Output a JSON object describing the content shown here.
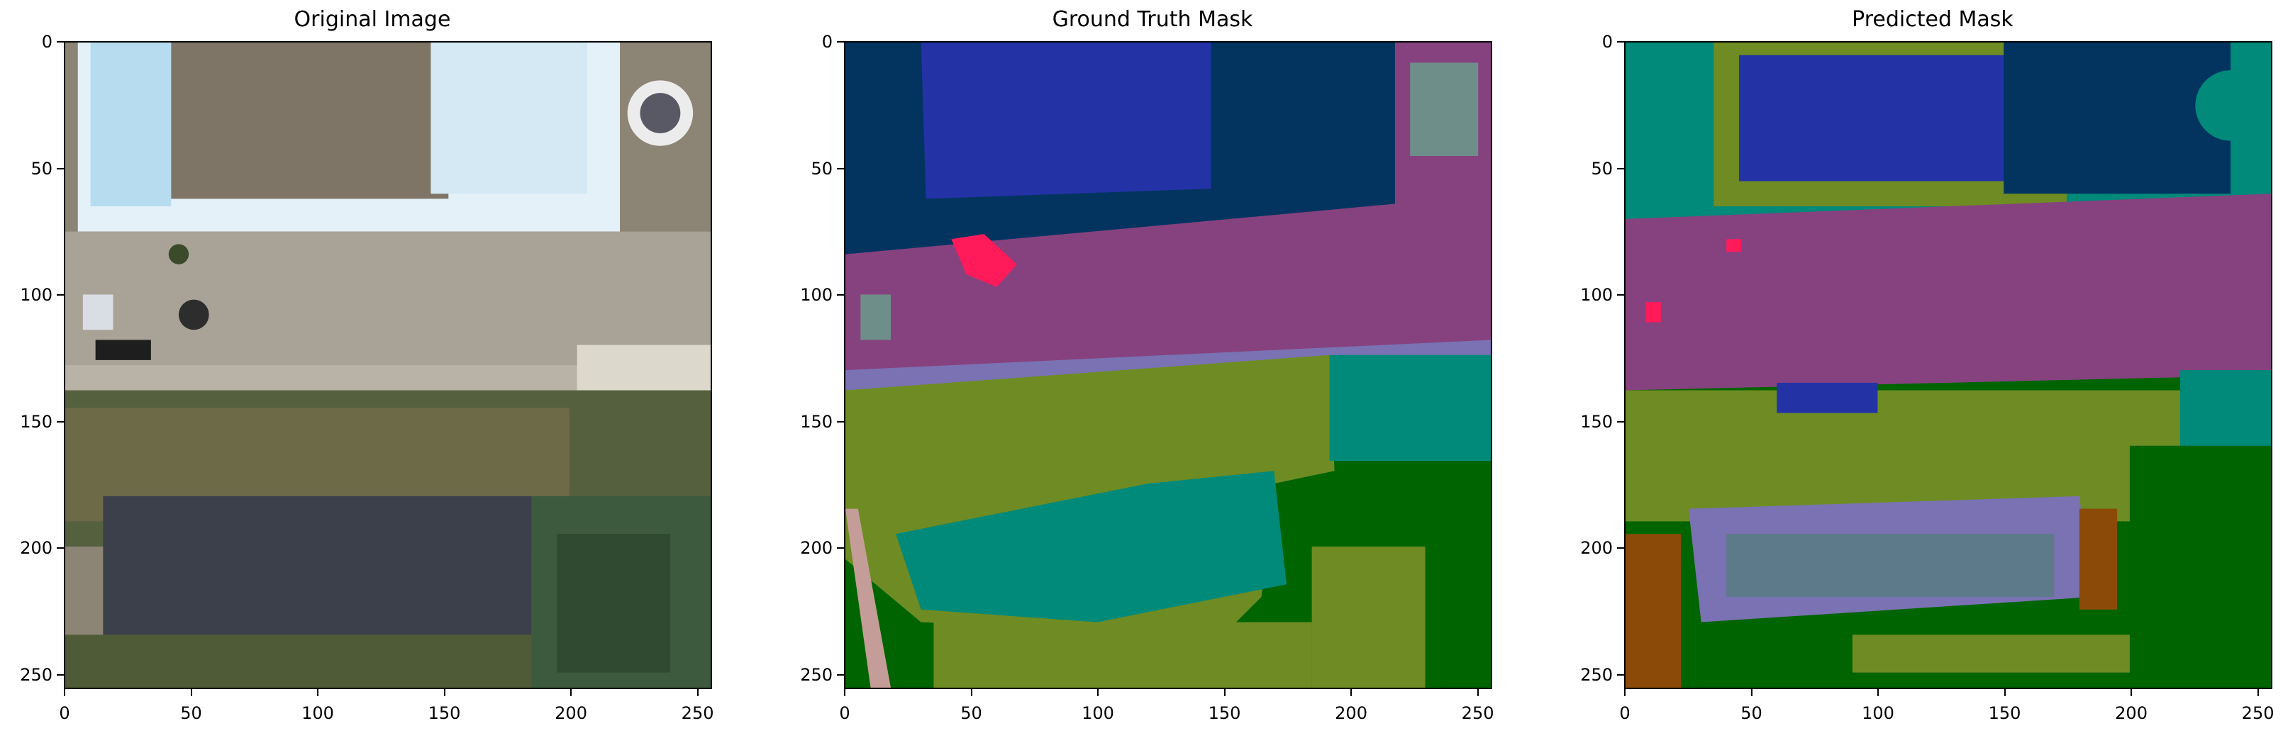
{
  "panels": [
    {
      "title": "Original Image"
    },
    {
      "title": "Ground Truth Mask"
    },
    {
      "title": "Predicted Mask"
    }
  ],
  "axes": {
    "x_ticks": [
      "0",
      "50",
      "100",
      "150",
      "200",
      "250"
    ],
    "y_ticks": [
      "0",
      "50",
      "100",
      "150",
      "200",
      "250"
    ],
    "x_values": [
      0,
      50,
      100,
      150,
      200,
      250
    ],
    "y_values": [
      0,
      50,
      100,
      150,
      200,
      250
    ],
    "range": [
      0,
      256
    ]
  },
  "colors": {
    "building_dark": "#033460",
    "blue": "#2333a6",
    "purple": "#86427f",
    "olive": "#6e8c23",
    "teal": "#01897a",
    "green": "#006400",
    "pink": "#ff1a5a",
    "lavender": "#7a72b2",
    "brown": "#8b4a08",
    "tan": "#c49d98",
    "grey_teal": "#6e8e8a"
  }
}
